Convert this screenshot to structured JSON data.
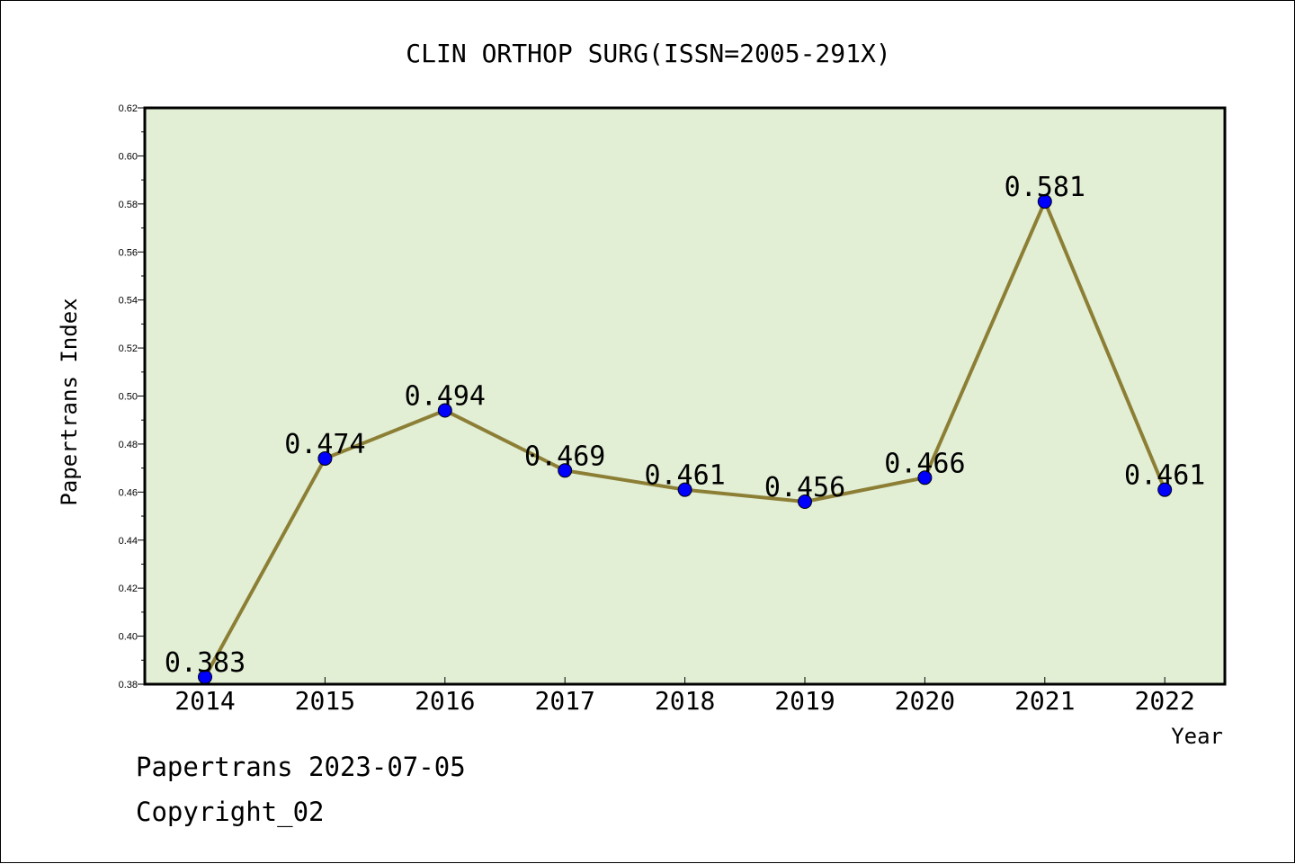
{
  "chart_data": {
    "type": "line",
    "title": "CLIN ORTHOP SURG(ISSN=2005-291X)",
    "xlabel": "Year",
    "ylabel": "Papertrans Index",
    "categories": [
      "2014",
      "2015",
      "2016",
      "2017",
      "2018",
      "2019",
      "2020",
      "2021",
      "2022"
    ],
    "series": [
      {
        "values": [
          0.383,
          0.474,
          0.494,
          0.469,
          0.461,
          0.456,
          0.466,
          0.581,
          0.461
        ]
      }
    ],
    "data_labels": [
      "0.383",
      "0.474",
      "0.494",
      "0.469",
      "0.461",
      "0.456",
      "0.466",
      "0.581",
      "0.461"
    ],
    "ylim": [
      0.38,
      0.62
    ],
    "yticks": [
      "0.38",
      "0.40",
      "0.42",
      "0.44",
      "0.46",
      "0.48",
      "0.50",
      "0.52",
      "0.54",
      "0.56",
      "0.58",
      "0.60",
      "0.62"
    ],
    "grid": false,
    "legend": "none",
    "colors": {
      "plot_background": "#e2efd5",
      "line": "#8c7f35",
      "marker": "#0000ff"
    }
  },
  "footer": {
    "line1": "Papertrans 2023-07-05",
    "line2": "Copyright_02"
  }
}
